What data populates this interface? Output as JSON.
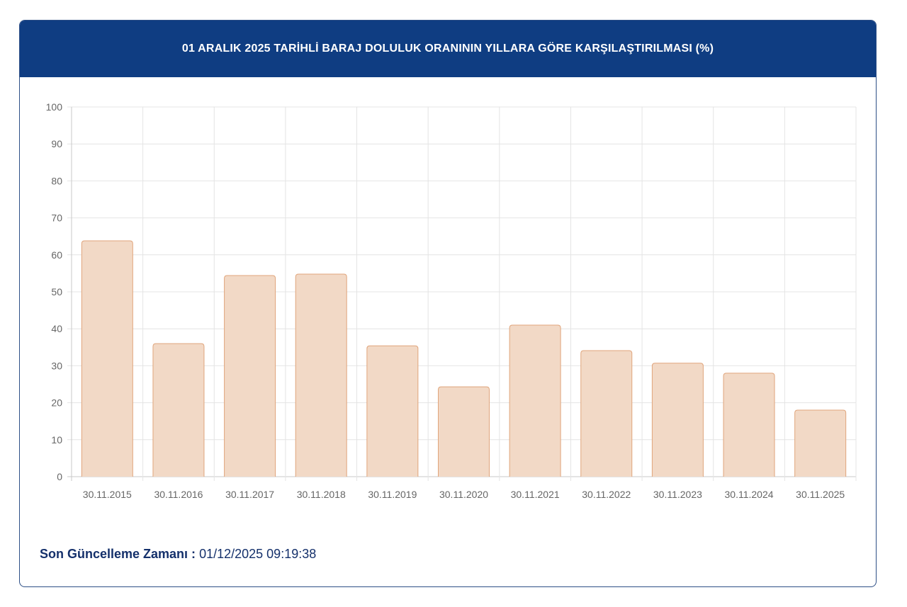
{
  "title": "01 ARALIK 2025 TARİHLİ BARAJ DOLULUK ORANININ YILLARA GÖRE KARŞILAŞTIRILMASI (%)",
  "footer": {
    "label": "Son Güncelleme Zamanı :",
    "value": "01/12/2025 09:19:38"
  },
  "colors": {
    "header": "#0f3d82",
    "bar_fill": "#f2d9c6",
    "bar_border": "#e0a57c",
    "text": "#14306b"
  },
  "chart_data": {
    "type": "bar",
    "title": "01 ARALIK 2025 TARİHLİ BARAJ DOLULUK ORANININ YILLARA GÖRE KARŞILAŞTIRILMASI (%)",
    "categories": [
      "30.11.2015",
      "30.11.2016",
      "30.11.2017",
      "30.11.2018",
      "30.11.2019",
      "30.11.2020",
      "30.11.2021",
      "30.11.2022",
      "30.11.2023",
      "30.11.2024",
      "30.11.2025"
    ],
    "values": [
      63.8,
      36.0,
      54.4,
      54.8,
      35.4,
      24.3,
      41.0,
      34.1,
      30.7,
      28.0,
      18.0
    ],
    "ylim": [
      0,
      100
    ],
    "yticks": [
      0,
      10,
      20,
      30,
      40,
      50,
      60,
      70,
      80,
      90,
      100
    ],
    "grid": true,
    "legend": "none"
  }
}
